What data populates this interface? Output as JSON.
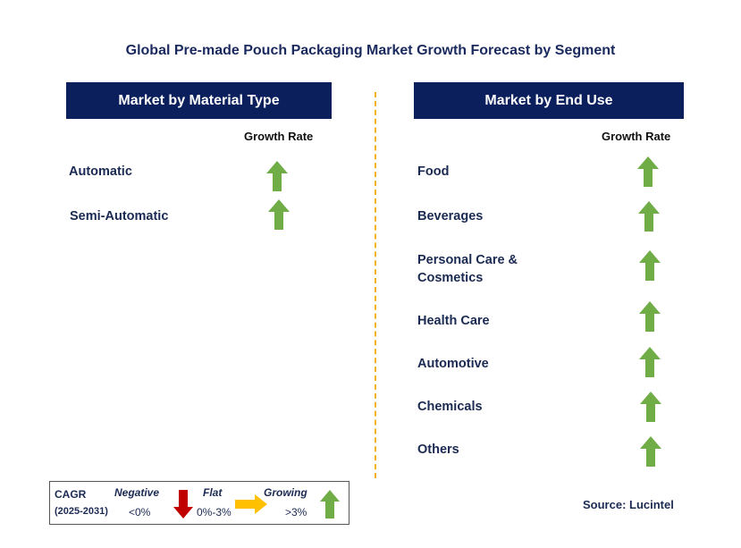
{
  "title": "Global Pre-made Pouch Packaging Market Growth Forecast by Segment",
  "left_panel": {
    "header": "Market by Material Type",
    "growth_rate_label": "Growth Rate",
    "items": [
      {
        "label": "Automatic",
        "trend": "growing"
      },
      {
        "label": "Semi-Automatic",
        "trend": "growing"
      }
    ]
  },
  "right_panel": {
    "header": "Market by End Use",
    "growth_rate_label": "Growth Rate",
    "items": [
      {
        "label": "Food",
        "trend": "growing"
      },
      {
        "label": "Beverages",
        "trend": "growing"
      },
      {
        "label": "Personal Care & Cosmetics",
        "trend": "growing"
      },
      {
        "label": "Health Care",
        "trend": "growing"
      },
      {
        "label": "Automotive",
        "trend": "growing"
      },
      {
        "label": "Chemicals",
        "trend": "growing"
      },
      {
        "label": "Others",
        "trend": "growing"
      }
    ]
  },
  "legend": {
    "cagr": "CAGR",
    "period": "(2025-2031)",
    "negative": {
      "label": "Negative",
      "range": "<0%",
      "icon": "down-arrow-icon",
      "color": "#c00000"
    },
    "flat": {
      "label": "Flat",
      "range": "0%-3%",
      "icon": "right-arrow-icon",
      "color": "#ffc000"
    },
    "growing": {
      "label": "Growing",
      "range": ">3%",
      "icon": "up-arrow-icon",
      "color": "#70ad47"
    }
  },
  "source": "Source: Lucintel",
  "colors": {
    "header_bg": "#0a1f5c",
    "divider": "#f2b21c",
    "up_arrow": "#70ad47"
  }
}
